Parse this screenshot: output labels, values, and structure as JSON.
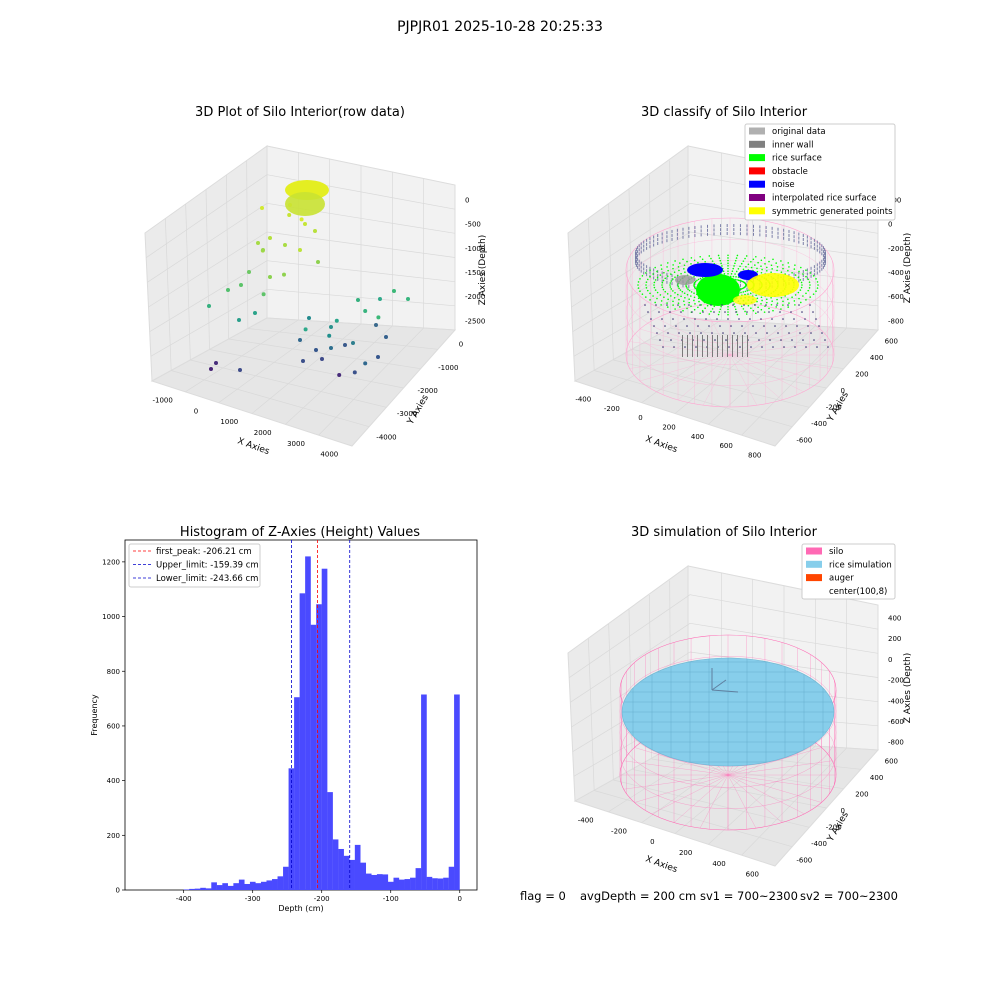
{
  "figure_title": "PJPJR01 2025-10-28 20:25:33",
  "status_line": {
    "flag": "flag = 0",
    "avg_depth": "avgDepth = 200 cm",
    "sv1": "sv1 = 700~2300",
    "sv2": "sv2 = 700~2300"
  },
  "colors": {
    "pane": "#f2f2f2",
    "grid": "#dcdcdc",
    "hist_bar": "#4a4aff",
    "first_peak": "#ff0000",
    "limit": "#0000cc",
    "silo": "#ff69b4",
    "rice_sim": "#87ceeb",
    "auger": "#ff4500",
    "rice_surface": "#00ff00",
    "noise": "#0000ff",
    "symmetric": "#ffff00",
    "inner_wall": "#808080"
  },
  "chart_data": [
    {
      "type": "scatter3d",
      "title": "3D Plot of Silo Interior(row data)",
      "xlabel": "X Axies",
      "ylabel": "Y Axies",
      "zlabel": "Z Axies (Depth)",
      "xticks": [
        "-1000",
        "0",
        "1000",
        "2000",
        "3000",
        "4000"
      ],
      "yticks": [
        "0",
        "-1000",
        "-2000",
        "-3000",
        "-4000"
      ],
      "zticks": [
        "0",
        "-500",
        "-1000",
        "-1500",
        "-2000",
        "-2500"
      ],
      "points_note": "",
      "points": [
        {
          "x": 0,
          "y": 0,
          "z": 0,
          "c": "#e8f02a"
        },
        {
          "x": -200,
          "y": -300,
          "z": -150,
          "c": "#c7e434"
        },
        {
          "x": 300,
          "y": -200,
          "z": -200,
          "c": "#d8ec2e"
        },
        {
          "x": -1200,
          "y": -400,
          "z": -800,
          "c": "#a8db45"
        },
        {
          "x": -900,
          "y": -1200,
          "z": -1100,
          "c": "#8fd24f"
        },
        {
          "x": -1400,
          "y": -800,
          "z": -1500,
          "c": "#5ec369"
        },
        {
          "x": -700,
          "y": -2200,
          "z": -1900,
          "c": "#2ea98a"
        },
        {
          "x": 600,
          "y": -1400,
          "z": -2000,
          "c": "#1f8f8c"
        },
        {
          "x": 1500,
          "y": -300,
          "z": -1800,
          "c": "#2aa58a"
        },
        {
          "x": 2800,
          "y": 200,
          "z": -1600,
          "c": "#38b37e"
        },
        {
          "x": 3500,
          "y": 600,
          "z": -1700,
          "c": "#3cb878"
        },
        {
          "x": 1200,
          "y": -2600,
          "z": -2300,
          "c": "#30688e"
        },
        {
          "x": 2000,
          "y": -2000,
          "z": -2200,
          "c": "#36578d"
        },
        {
          "x": -300,
          "y": -3600,
          "z": -2500,
          "c": "#472c7a"
        },
        {
          "x": 600,
          "y": -3000,
          "z": -2450,
          "c": "#3b528b"
        }
      ]
    },
    {
      "type": "scatter3d",
      "title": "3D classify of Silo Interior",
      "zlabel": "Z Axies (Depth)",
      "xlabel": "X Axies",
      "ylabel": "Y Axies",
      "xticks": [
        "-400",
        "-200",
        "0",
        "200",
        "400",
        "600",
        "800"
      ],
      "yticks": [
        "600",
        "400",
        "200",
        "0",
        "-200",
        "-400",
        "-600"
      ],
      "zticks": [
        "200",
        "0",
        "-200",
        "-400",
        "-600",
        "-800"
      ],
      "legend_position": "top-right",
      "legend": [
        {
          "label": "original data",
          "color": "#b0b0b0"
        },
        {
          "label": "inner wall",
          "color": "#808080"
        },
        {
          "label": "rice surface",
          "color": "#00ff00"
        },
        {
          "label": "obstacle",
          "color": "#ff0000"
        },
        {
          "label": "noise",
          "color": "#0000ff"
        },
        {
          "label": "interpolated rice surface",
          "color": "#800080"
        },
        {
          "label": "symmetric generated points",
          "color": "#ffff00"
        }
      ]
    },
    {
      "type": "bar",
      "title": "Histogram of Z-Axies (Height) Values",
      "xlabel": "Depth (cm)",
      "ylabel": "Frequency",
      "xlim": [
        -485,
        25
      ],
      "ylim": [
        0,
        1280
      ],
      "xticks": [
        -400,
        -300,
        -200,
        -100,
        0
      ],
      "yticks": [
        0,
        200,
        400,
        600,
        800,
        1000,
        1200
      ],
      "bin_width": 8.2,
      "bins": [
        {
          "left": -400,
          "count": 2
        },
        {
          "left": -392,
          "count": 4
        },
        {
          "left": -384,
          "count": 5
        },
        {
          "left": -376,
          "count": 8
        },
        {
          "left": -368,
          "count": 6
        },
        {
          "left": -360,
          "count": 28
        },
        {
          "left": -352,
          "count": 18
        },
        {
          "left": -344,
          "count": 25
        },
        {
          "left": -336,
          "count": 15
        },
        {
          "left": -328,
          "count": 25
        },
        {
          "left": -320,
          "count": 38
        },
        {
          "left": -312,
          "count": 22
        },
        {
          "left": -304,
          "count": 30
        },
        {
          "left": -296,
          "count": 25
        },
        {
          "left": -288,
          "count": 30
        },
        {
          "left": -280,
          "count": 35
        },
        {
          "left": -272,
          "count": 40
        },
        {
          "left": -264,
          "count": 50
        },
        {
          "left": -256,
          "count": 85
        },
        {
          "left": -248,
          "count": 445
        },
        {
          "left": -240,
          "count": 705
        },
        {
          "left": -232,
          "count": 1085
        },
        {
          "left": -224,
          "count": 1220
        },
        {
          "left": -216,
          "count": 970
        },
        {
          "left": -208,
          "count": 1045
        },
        {
          "left": -200,
          "count": 1175
        },
        {
          "left": -192,
          "count": 358
        },
        {
          "left": -184,
          "count": 185
        },
        {
          "left": -176,
          "count": 150
        },
        {
          "left": -168,
          "count": 125
        },
        {
          "left": -160,
          "count": 110
        },
        {
          "left": -152,
          "count": 165
        },
        {
          "left": -144,
          "count": 100
        },
        {
          "left": -136,
          "count": 60
        },
        {
          "left": -128,
          "count": 55
        },
        {
          "left": -120,
          "count": 58
        },
        {
          "left": -112,
          "count": 57
        },
        {
          "left": -104,
          "count": 30
        },
        {
          "left": -96,
          "count": 45
        },
        {
          "left": -88,
          "count": 38
        },
        {
          "left": -80,
          "count": 40
        },
        {
          "left": -72,
          "count": 45
        },
        {
          "left": -64,
          "count": 80
        },
        {
          "left": -56,
          "count": 715
        }
      ],
      "lines": [
        {
          "x": -206.21,
          "label": "first_peak: -206.21 cm",
          "color": "#ff0000"
        },
        {
          "x": -159.39,
          "label": "Upper_limit: -159.39 cm",
          "color": "#0000cc"
        },
        {
          "x": -243.66,
          "label": "Lower_limit: -243.66 cm",
          "color": "#0000cc"
        }
      ],
      "legend_position": "top-left"
    },
    {
      "type": "surface3d",
      "title": "3D simulation of Silo Interior",
      "xlabel": "X Axies",
      "ylabel": "Y Axies",
      "zlabel": "Z Axies (Depth)",
      "xticks": [
        "-400",
        "-200",
        "0",
        "200",
        "400",
        "600"
      ],
      "yticks": [
        "600",
        "400",
        "200",
        "0",
        "-200",
        "-400",
        "-600"
      ],
      "zticks": [
        "400",
        "200",
        "0",
        "-200",
        "-400",
        "-600",
        "-800"
      ],
      "legend_position": "top-right",
      "legend": [
        {
          "label": "silo",
          "color": "#ff69b4"
        },
        {
          "label": "rice simulation",
          "color": "#87ceeb"
        },
        {
          "label": "auger",
          "color": "#ff4500"
        },
        {
          "label": "center(100,8)",
          "color": ""
        }
      ]
    }
  ]
}
